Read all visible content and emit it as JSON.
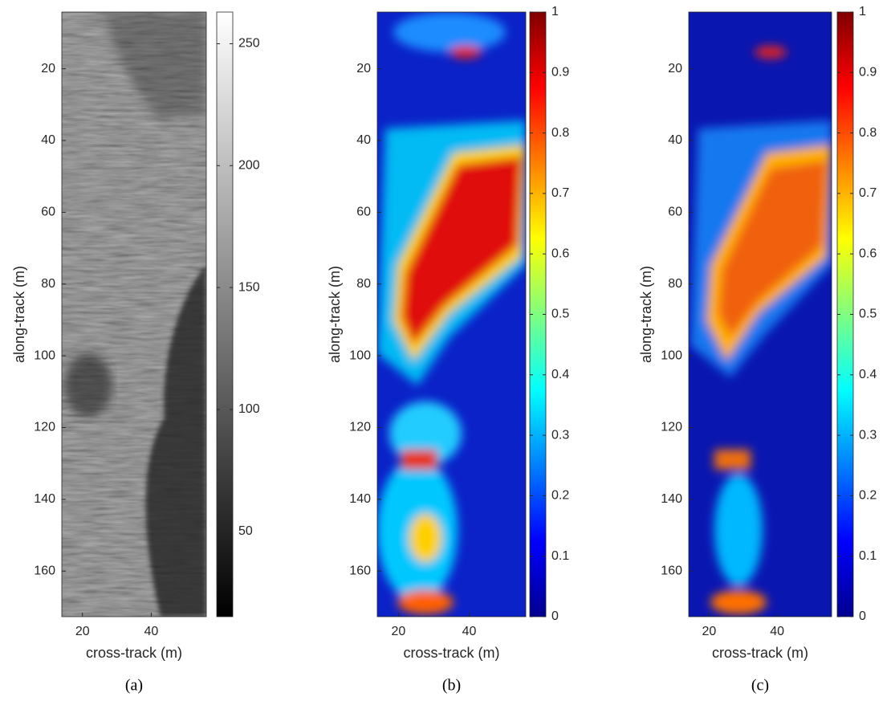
{
  "chart_data": [
    {
      "type": "heatmap",
      "colormap": "gray",
      "caption": "(a)",
      "xlabel": "cross-track (m)",
      "ylabel": "along-track (m)",
      "xlim": [
        14,
        56
      ],
      "xticks": [
        20,
        40
      ],
      "ylim": [
        4.2,
        172.7
      ],
      "yreversed": true,
      "yticks": [
        20,
        40,
        60,
        80,
        100,
        120,
        140,
        160
      ],
      "clim": [
        15,
        263
      ],
      "cticks": [
        50,
        100,
        150,
        200,
        250
      ]
    },
    {
      "type": "heatmap",
      "colormap": "jet",
      "caption": "(b)",
      "xlabel": "cross-track (m)",
      "ylabel": "along-track (m)",
      "xlim": [
        14,
        56
      ],
      "xticks": [
        20,
        40
      ],
      "ylim": [
        4.2,
        172.7
      ],
      "yreversed": true,
      "yticks": [
        20,
        40,
        60,
        80,
        100,
        120,
        140,
        160
      ],
      "clim": [
        0,
        1
      ],
      "cticks": [
        0,
        0.1,
        0.2,
        0.3,
        0.4,
        0.5,
        0.6,
        0.7,
        0.8,
        0.9,
        1
      ]
    },
    {
      "type": "heatmap",
      "colormap": "jet",
      "caption": "(c)",
      "xlabel": "cross-track (m)",
      "ylabel": "along-track (m)",
      "xlim": [
        14,
        56
      ],
      "xticks": [
        20,
        40
      ],
      "ylim": [
        4.2,
        172.7
      ],
      "yreversed": true,
      "yticks": [
        20,
        40,
        60,
        80,
        100,
        120,
        140,
        160
      ],
      "clim": [
        0,
        1
      ],
      "cticks": [
        0,
        0.1,
        0.2,
        0.3,
        0.4,
        0.5,
        0.6,
        0.7,
        0.8,
        0.9,
        1
      ]
    }
  ]
}
